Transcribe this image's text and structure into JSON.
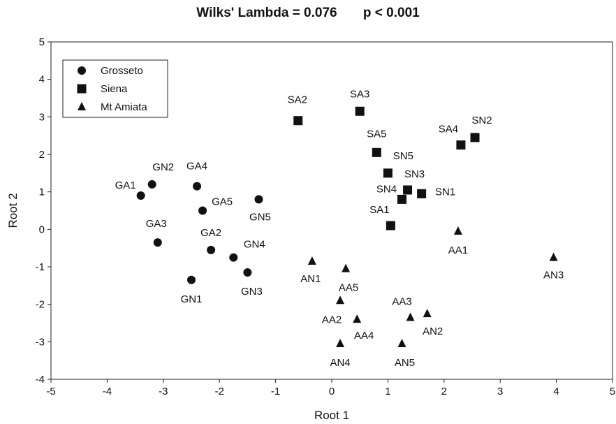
{
  "chart_data": {
    "type": "scatter",
    "title": "Wilks' Lambda = 0.076",
    "subtitle": "p < 0.001",
    "xlabel": "Root 1",
    "ylabel": "Root 2",
    "xlim": [
      -5,
      5
    ],
    "ylim": [
      -4,
      5
    ],
    "xticks": [
      -5,
      -4,
      -3,
      -2,
      -1,
      0,
      1,
      2,
      3,
      4,
      5
    ],
    "yticks": [
      -4,
      -3,
      -2,
      -1,
      0,
      1,
      2,
      3,
      4,
      5
    ],
    "grid": false,
    "legend_position": "top-left",
    "series": [
      {
        "name": "Grosseto",
        "marker": "circle",
        "color": "#111111",
        "points": [
          {
            "label": "GA1",
            "x": -3.4,
            "y": 0.9
          },
          {
            "label": "GN2",
            "x": -3.2,
            "y": 1.2
          },
          {
            "label": "GA4",
            "x": -2.4,
            "y": 1.15
          },
          {
            "label": "GA5",
            "x": -2.3,
            "y": 0.5
          },
          {
            "label": "GN5",
            "x": -1.3,
            "y": 0.8
          },
          {
            "label": "GA3",
            "x": -3.1,
            "y": -0.35
          },
          {
            "label": "GA2",
            "x": -2.15,
            "y": -0.55
          },
          {
            "label": "GN4",
            "x": -1.75,
            "y": -0.75
          },
          {
            "label": "GN3",
            "x": -1.5,
            "y": -1.15
          },
          {
            "label": "GN1",
            "x": -2.5,
            "y": -1.35
          }
        ]
      },
      {
        "name": "Siena",
        "marker": "square",
        "color": "#111111",
        "points": [
          {
            "label": "SA2",
            "x": -0.6,
            "y": 2.9
          },
          {
            "label": "SA3",
            "x": 0.5,
            "y": 3.15
          },
          {
            "label": "SA5",
            "x": 0.8,
            "y": 2.05
          },
          {
            "label": "SA4",
            "x": 2.3,
            "y": 2.25
          },
          {
            "label": "SN2",
            "x": 2.55,
            "y": 2.45
          },
          {
            "label": "SN5",
            "x": 1.0,
            "y": 1.5
          },
          {
            "label": "SN3",
            "x": 1.35,
            "y": 1.05
          },
          {
            "label": "SN4",
            "x": 1.25,
            "y": 0.8
          },
          {
            "label": "SN1",
            "x": 1.6,
            "y": 0.95
          },
          {
            "label": "SA1",
            "x": 1.05,
            "y": 0.1
          }
        ]
      },
      {
        "name": "Mt Amiata",
        "marker": "triangle",
        "color": "#111111",
        "points": [
          {
            "label": "AA1",
            "x": 2.25,
            "y": -0.05
          },
          {
            "label": "AN3",
            "x": 3.95,
            "y": -0.75
          },
          {
            "label": "AN1",
            "x": -0.35,
            "y": -0.85
          },
          {
            "label": "AA5",
            "x": 0.25,
            "y": -1.05
          },
          {
            "label": "AA2",
            "x": 0.15,
            "y": -1.9
          },
          {
            "label": "AA4",
            "x": 0.45,
            "y": -2.4
          },
          {
            "label": "AA3",
            "x": 1.4,
            "y": -2.35
          },
          {
            "label": "AN2",
            "x": 1.7,
            "y": -2.25
          },
          {
            "label": "AN4",
            "x": 0.15,
            "y": -3.05
          },
          {
            "label": "AN5",
            "x": 1.25,
            "y": -3.05
          }
        ]
      }
    ]
  }
}
